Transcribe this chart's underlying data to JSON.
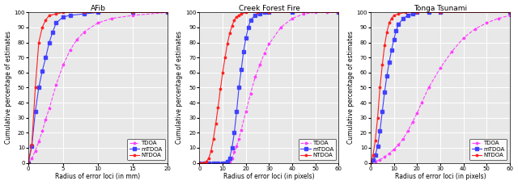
{
  "plots": [
    {
      "title": "AFib",
      "xlabel": "Radius of error loci (in mm)",
      "ylabel": "Cumulative percentage of estimates",
      "xlim": [
        0,
        20
      ],
      "ylim": [
        0,
        100
      ],
      "xticks": [
        0,
        5,
        10,
        15,
        20
      ],
      "yticks": [
        0,
        10,
        20,
        30,
        40,
        50,
        60,
        70,
        80,
        90,
        100
      ],
      "TDOA_x": [
        0,
        0.5,
        1.0,
        1.5,
        2.0,
        2.5,
        3.0,
        4.0,
        5.0,
        6.0,
        7.0,
        8.0,
        10.0,
        12.0,
        15.0,
        20.0
      ],
      "TDOA_y": [
        0,
        3,
        8,
        14,
        21,
        29,
        36,
        52,
        65,
        75,
        82,
        87,
        93,
        96,
        98,
        100
      ],
      "mTDOA_x": [
        0,
        0.5,
        1.0,
        1.5,
        2.0,
        2.5,
        3.0,
        3.5,
        4.0,
        5.0,
        6.0,
        8.0,
        10.0,
        15.0,
        20.0
      ],
      "mTDOA_y": [
        0,
        11,
        34,
        50,
        61,
        70,
        80,
        87,
        93,
        97,
        98,
        99,
        100,
        100,
        100
      ],
      "NTDOA_x": [
        0,
        0.5,
        1.0,
        1.5,
        2.0,
        2.5,
        3.0,
        4.0,
        5.0,
        8.0,
        15.0,
        20.0
      ],
      "NTDOA_y": [
        0,
        12,
        50,
        80,
        90,
        95,
        98,
        99,
        100,
        100,
        100,
        100
      ],
      "legend_loc": "lower right"
    },
    {
      "title": "Creek Forest Fire",
      "xlabel": "Radius of error loci (in pixels)",
      "ylabel": "Cumulative percentage of estimates",
      "xlim": [
        0,
        60
      ],
      "ylim": [
        0,
        100
      ],
      "xticks": [
        0,
        10,
        20,
        30,
        40,
        50,
        60
      ],
      "yticks": [
        0,
        10,
        20,
        30,
        40,
        50,
        60,
        70,
        80,
        90,
        100
      ],
      "TDOA_x": [
        0,
        2,
        4,
        6,
        8,
        10,
        12,
        13,
        14,
        15,
        16,
        17,
        18,
        20,
        22,
        24,
        26,
        28,
        30,
        35,
        40,
        45,
        50,
        55,
        60
      ],
      "TDOA_y": [
        0,
        0,
        0,
        0,
        0,
        0,
        0,
        1,
        3,
        7,
        11,
        16,
        22,
        34,
        46,
        57,
        65,
        73,
        79,
        90,
        96,
        99,
        100,
        100,
        100
      ],
      "mTDOA_x": [
        0,
        2,
        4,
        6,
        8,
        10,
        11,
        12,
        13,
        14,
        15,
        16,
        17,
        18,
        19,
        20,
        21,
        22,
        24,
        26,
        28,
        30,
        40,
        60
      ],
      "mTDOA_y": [
        0,
        0,
        0,
        0,
        0,
        0,
        0,
        1,
        3,
        10,
        20,
        34,
        50,
        62,
        74,
        83,
        90,
        95,
        98,
        99,
        100,
        100,
        100,
        100
      ],
      "NTDOA_x": [
        0,
        1,
        2,
        3,
        4,
        5,
        6,
        7,
        8,
        9,
        10,
        11,
        12,
        13,
        14,
        15,
        16,
        17,
        18,
        20,
        25,
        30,
        60
      ],
      "NTDOA_y": [
        0,
        0,
        0,
        1,
        3,
        8,
        16,
        26,
        37,
        49,
        60,
        70,
        79,
        86,
        91,
        95,
        97,
        98,
        99,
        100,
        100,
        100,
        100
      ],
      "legend_loc": "lower right"
    },
    {
      "title": "Tonga Tsunami",
      "xlabel": "Radius of error loci (in pixels)",
      "ylabel": "Cumulative percentage of estimates",
      "xlim": [
        0,
        60
      ],
      "ylim": [
        0,
        100
      ],
      "xticks": [
        0,
        10,
        20,
        30,
        40,
        50,
        60
      ],
      "yticks": [
        0,
        10,
        20,
        30,
        40,
        50,
        60,
        70,
        80,
        90,
        100
      ],
      "TDOA_x": [
        0,
        2,
        4,
        6,
        8,
        10,
        12,
        14,
        16,
        18,
        20,
        22,
        25,
        30,
        35,
        40,
        45,
        50,
        55,
        60
      ],
      "TDOA_y": [
        0,
        1,
        2,
        4,
        6,
        9,
        12,
        16,
        21,
        27,
        33,
        40,
        50,
        63,
        74,
        83,
        89,
        93,
        96,
        98
      ],
      "mTDOA_x": [
        0,
        1,
        2,
        3,
        4,
        5,
        6,
        7,
        8,
        9,
        10,
        11,
        12,
        14,
        16,
        18,
        20,
        25,
        30,
        60
      ],
      "mTDOA_y": [
        0,
        2,
        5,
        11,
        21,
        34,
        47,
        58,
        67,
        75,
        82,
        88,
        92,
        96,
        98,
        99,
        100,
        100,
        100,
        100
      ],
      "NTDOA_x": [
        0,
        1,
        2,
        3,
        4,
        5,
        6,
        7,
        8,
        9,
        10,
        12,
        15,
        20,
        30,
        60
      ],
      "NTDOA_y": [
        0,
        5,
        15,
        30,
        50,
        65,
        78,
        87,
        93,
        96,
        98,
        99,
        100,
        100,
        100,
        100
      ],
      "legend_loc": "lower right"
    }
  ],
  "TDOA_color": "#FF40FF",
  "mTDOA_color": "#4040FF",
  "NTDOA_color": "#FF2020",
  "bg_color": "#e8e8e8",
  "grid_color": "#ffffff"
}
